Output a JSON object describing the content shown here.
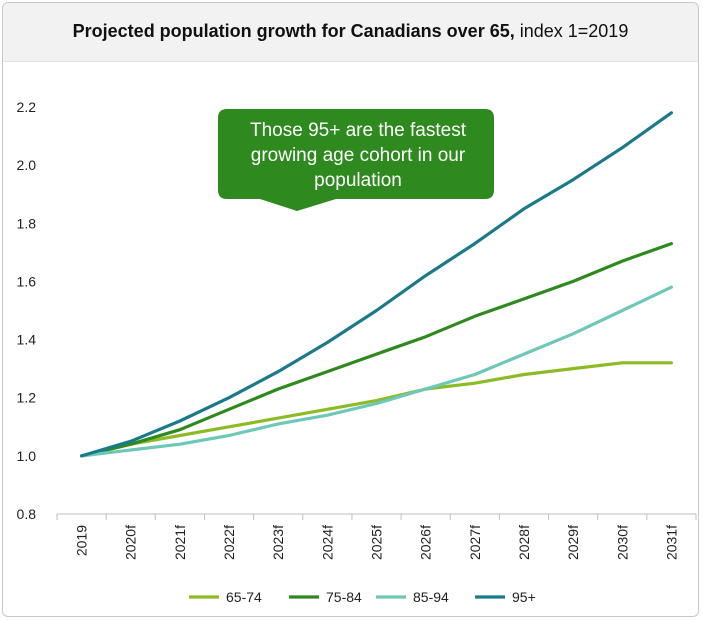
{
  "header": {
    "title_bold": "Projected population growth for Canadians  over 65,",
    "title_normal": " index 1=2019"
  },
  "callout": {
    "lines": [
      "Those 95+ are the fastest",
      "growing age cohort in our",
      "population"
    ],
    "color": "#2e8a1e"
  },
  "chart_data": {
    "type": "line",
    "title": "Projected population growth for Canadians  over 65, index 1=2019",
    "xlabel": "",
    "ylabel": "",
    "ylim": [
      0.8,
      2.2
    ],
    "yticks": [
      "0.8",
      "1.0",
      "1.2",
      "1.4",
      "1.6",
      "1.8",
      "2.0",
      "2.2"
    ],
    "categories": [
      "2019",
      "2020f",
      "2021f",
      "2022f",
      "2023f",
      "2024f",
      "2025f",
      "2026f",
      "2027f",
      "2028f",
      "2029f",
      "2030f",
      "2031f"
    ],
    "grid": false,
    "legend_position": "bottom",
    "series": [
      {
        "name": "65-74",
        "color": "#8dbb26",
        "values": [
          1.0,
          1.04,
          1.07,
          1.1,
          1.13,
          1.16,
          1.19,
          1.23,
          1.25,
          1.28,
          1.3,
          1.32,
          1.32
        ]
      },
      {
        "name": "75-84",
        "color": "#2e8a1e",
        "values": [
          1.0,
          1.04,
          1.09,
          1.16,
          1.23,
          1.29,
          1.35,
          1.41,
          1.48,
          1.54,
          1.6,
          1.67,
          1.73
        ]
      },
      {
        "name": "85-94",
        "color": "#6dc8b8",
        "values": [
          1.0,
          1.02,
          1.04,
          1.07,
          1.11,
          1.14,
          1.18,
          1.23,
          1.28,
          1.35,
          1.42,
          1.5,
          1.58
        ]
      },
      {
        "name": "95+",
        "color": "#1a7a8a",
        "values": [
          1.0,
          1.05,
          1.12,
          1.2,
          1.29,
          1.39,
          1.5,
          1.62,
          1.73,
          1.85,
          1.95,
          2.06,
          2.18
        ]
      }
    ]
  }
}
